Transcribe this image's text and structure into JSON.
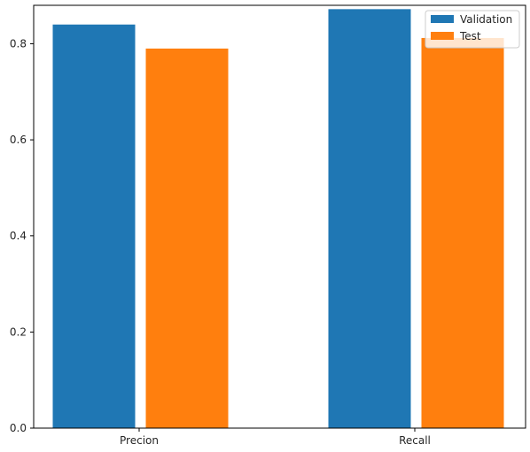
{
  "chart_data": {
    "type": "bar",
    "categories": [
      "Precion",
      "Recall"
    ],
    "series": [
      {
        "name": "Validation",
        "values": [
          0.84,
          0.872
        ],
        "color": "#1f77b4"
      },
      {
        "name": "Test",
        "values": [
          0.79,
          0.812
        ],
        "color": "#ff7f0e"
      }
    ],
    "ylim": [
      0,
      0.88
    ],
    "yticks": [
      "0.0",
      "0.2",
      "0.4",
      "0.6",
      "0.8"
    ],
    "ytick_values": [
      0.0,
      0.2,
      0.4,
      0.6,
      0.8
    ],
    "legend_position": "top-right",
    "grid": false
  }
}
